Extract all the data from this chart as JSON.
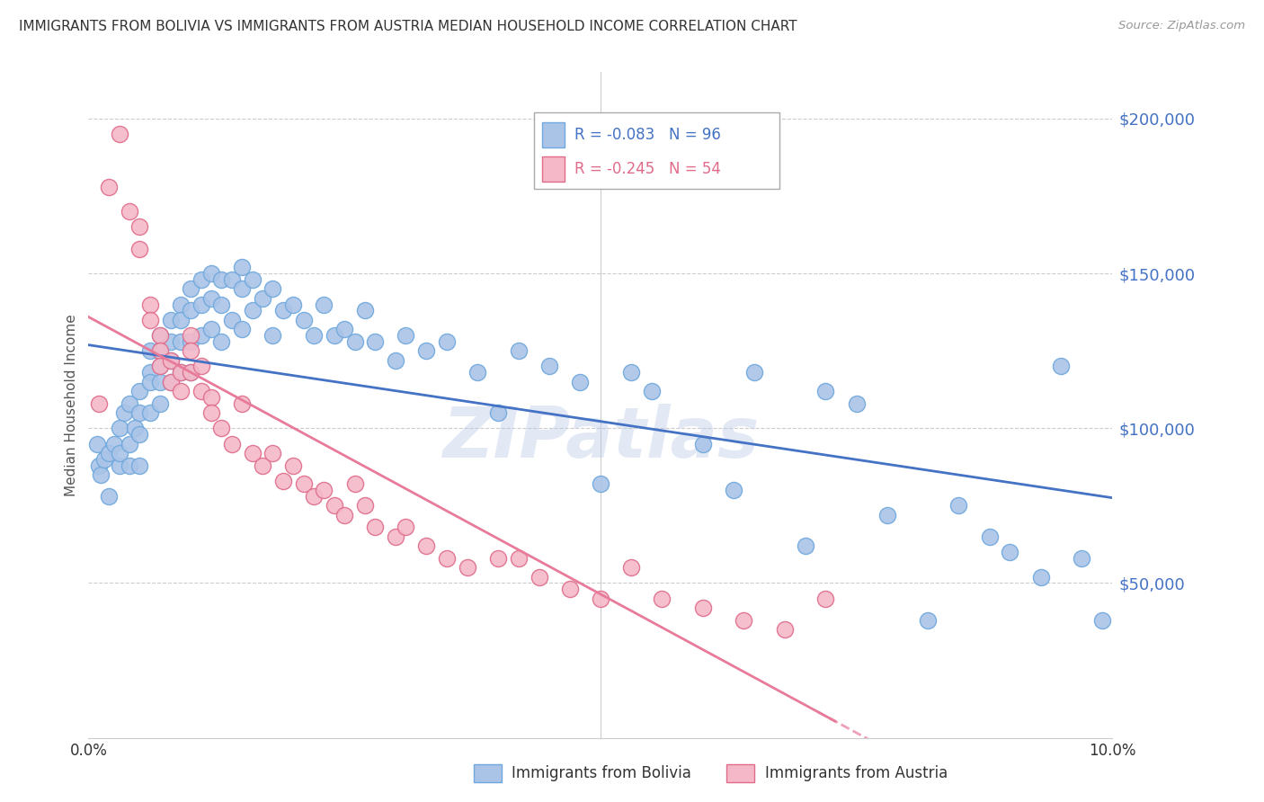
{
  "title": "IMMIGRANTS FROM BOLIVIA VS IMMIGRANTS FROM AUSTRIA MEDIAN HOUSEHOLD INCOME CORRELATION CHART",
  "source": "Source: ZipAtlas.com",
  "ylabel": "Median Household Income",
  "yticks": [
    0,
    50000,
    100000,
    150000,
    200000
  ],
  "ytick_labels": [
    "",
    "$50,000",
    "$100,000",
    "$150,000",
    "$200,000"
  ],
  "ylim": [
    0,
    215000
  ],
  "xlim": [
    0.0,
    0.1
  ],
  "bolivia_color": "#aac4e8",
  "bolivia_edge": "#6fa8dc",
  "austria_color": "#f4b8c8",
  "austria_edge": "#e06c8a",
  "bolivia_R": "-0.083",
  "bolivia_N": "96",
  "austria_R": "-0.245",
  "austria_N": "54",
  "trend_bolivia_color": "#4472c4",
  "trend_austria_color": "#e87a9a",
  "watermark": "ZIPatlas",
  "bolivia_x": [
    0.0008,
    0.001,
    0.0012,
    0.0015,
    0.002,
    0.002,
    0.0025,
    0.003,
    0.003,
    0.003,
    0.0035,
    0.004,
    0.004,
    0.004,
    0.0045,
    0.005,
    0.005,
    0.005,
    0.005,
    0.006,
    0.006,
    0.006,
    0.006,
    0.007,
    0.007,
    0.007,
    0.007,
    0.007,
    0.008,
    0.008,
    0.008,
    0.008,
    0.009,
    0.009,
    0.009,
    0.009,
    0.01,
    0.01,
    0.01,
    0.01,
    0.011,
    0.011,
    0.011,
    0.012,
    0.012,
    0.012,
    0.013,
    0.013,
    0.013,
    0.014,
    0.014,
    0.015,
    0.015,
    0.015,
    0.016,
    0.016,
    0.017,
    0.018,
    0.018,
    0.019,
    0.02,
    0.021,
    0.022,
    0.023,
    0.024,
    0.025,
    0.026,
    0.027,
    0.028,
    0.03,
    0.031,
    0.033,
    0.035,
    0.038,
    0.04,
    0.042,
    0.045,
    0.048,
    0.05,
    0.053,
    0.055,
    0.06,
    0.063,
    0.065,
    0.07,
    0.072,
    0.075,
    0.078,
    0.082,
    0.085,
    0.088,
    0.09,
    0.093,
    0.095,
    0.097,
    0.099
  ],
  "bolivia_y": [
    95000,
    88000,
    85000,
    90000,
    78000,
    92000,
    95000,
    100000,
    88000,
    92000,
    105000,
    95000,
    108000,
    88000,
    100000,
    112000,
    105000,
    98000,
    88000,
    118000,
    125000,
    115000,
    105000,
    130000,
    125000,
    120000,
    115000,
    108000,
    135000,
    128000,
    122000,
    115000,
    140000,
    135000,
    128000,
    118000,
    145000,
    138000,
    128000,
    118000,
    148000,
    140000,
    130000,
    150000,
    142000,
    132000,
    148000,
    140000,
    128000,
    148000,
    135000,
    152000,
    145000,
    132000,
    148000,
    138000,
    142000,
    145000,
    130000,
    138000,
    140000,
    135000,
    130000,
    140000,
    130000,
    132000,
    128000,
    138000,
    128000,
    122000,
    130000,
    125000,
    128000,
    118000,
    105000,
    125000,
    120000,
    115000,
    82000,
    118000,
    112000,
    95000,
    80000,
    118000,
    62000,
    112000,
    108000,
    72000,
    38000,
    75000,
    65000,
    60000,
    52000,
    120000,
    58000,
    38000
  ],
  "austria_x": [
    0.001,
    0.002,
    0.003,
    0.004,
    0.005,
    0.005,
    0.006,
    0.006,
    0.007,
    0.007,
    0.007,
    0.008,
    0.008,
    0.009,
    0.009,
    0.01,
    0.01,
    0.01,
    0.011,
    0.011,
    0.012,
    0.012,
    0.013,
    0.014,
    0.015,
    0.016,
    0.017,
    0.018,
    0.019,
    0.02,
    0.021,
    0.022,
    0.023,
    0.024,
    0.025,
    0.026,
    0.027,
    0.028,
    0.03,
    0.031,
    0.033,
    0.035,
    0.037,
    0.04,
    0.042,
    0.044,
    0.047,
    0.05,
    0.053,
    0.056,
    0.06,
    0.064,
    0.068,
    0.072
  ],
  "austria_y": [
    108000,
    178000,
    195000,
    170000,
    165000,
    158000,
    140000,
    135000,
    130000,
    125000,
    120000,
    122000,
    115000,
    118000,
    112000,
    130000,
    125000,
    118000,
    120000,
    112000,
    110000,
    105000,
    100000,
    95000,
    108000,
    92000,
    88000,
    92000,
    83000,
    88000,
    82000,
    78000,
    80000,
    75000,
    72000,
    82000,
    75000,
    68000,
    65000,
    68000,
    62000,
    58000,
    55000,
    58000,
    58000,
    52000,
    48000,
    45000,
    55000,
    45000,
    42000,
    38000,
    35000,
    45000
  ],
  "legend_R_bolivia": "R = -0.083",
  "legend_N_bolivia": "N = 96",
  "legend_R_austria": "R = -0.245",
  "legend_N_austria": "N = 54",
  "legend_label_bolivia": "Immigrants from Bolivia",
  "legend_label_austria": "Immigrants from Austria"
}
